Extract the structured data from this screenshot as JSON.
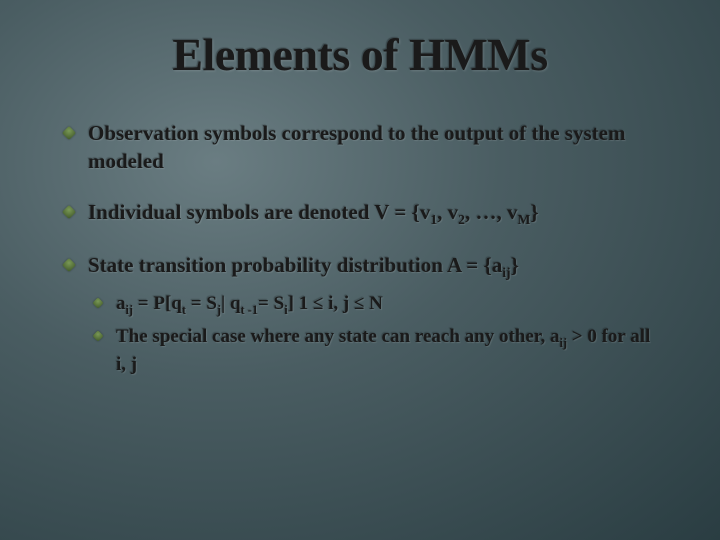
{
  "background": {
    "gradient_inner": "#6a7d82",
    "gradient_mid": "#4a5d62",
    "gradient_outer": "#2a3d42"
  },
  "bullet_marker": {
    "shape": "diamond",
    "gradient_light": "#7a9955",
    "gradient_dark": "#3d5528"
  },
  "title": {
    "text": "Elements of HMMs",
    "fontsize": 46,
    "color": "#1a1a1a",
    "weight": "bold"
  },
  "body_text": {
    "fontsize": 21,
    "sub_fontsize": 19,
    "color": "#1a1a1a",
    "weight": "bold",
    "font_family": "Georgia, serif"
  },
  "bullets": [
    {
      "text_html": "Observation symbols correspond to the output of the system modeled"
    },
    {
      "text_html": "Individual symbols are denoted V = {v<sub>1</sub>, v<sub>2</sub>, …, v<sub>M</sub>}"
    },
    {
      "text_html": "State transition probability distribution A = {a<sub>ij</sub>}",
      "sub": [
        {
          "text_html": "a<sub>ij</sub> = P[q<sub>t</sub> = S<sub>j</sub>| q<sub>t -1</sub>= S<sub>i</sub>] 1 ≤ i, j ≤ N"
        },
        {
          "text_html": "The special case where any state can reach any other, a<sub>ij</sub> > 0 for all i, j"
        }
      ]
    }
  ]
}
